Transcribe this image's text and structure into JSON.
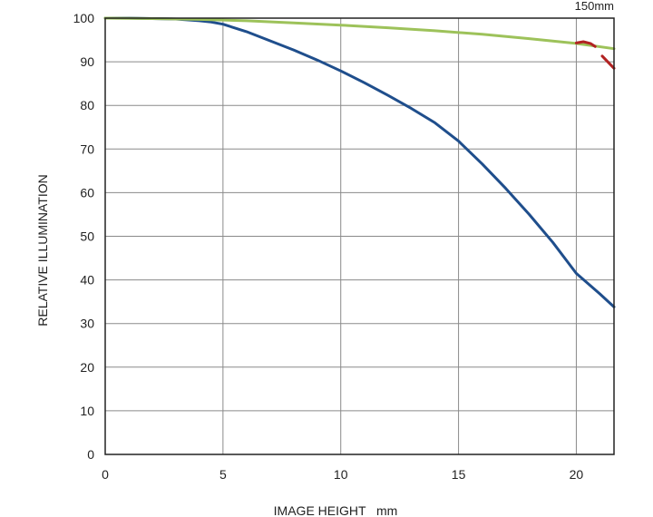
{
  "chart_data": {
    "type": "line",
    "title": "",
    "annotation": "150mm",
    "xlabel": "IMAGE HEIGHT   mm",
    "ylabel": "RELATIVE ILLUMINATION",
    "xlim": [
      0,
      21.6
    ],
    "ylim": [
      0,
      100
    ],
    "xticks": [
      0,
      5,
      10,
      15,
      20
    ],
    "yticks": [
      0,
      10,
      20,
      30,
      40,
      50,
      60,
      70,
      80,
      90,
      100
    ],
    "grid": true,
    "series": [
      {
        "color": "#1f4e8c",
        "x": [
          0,
          1,
          2,
          3,
          4,
          4.5,
          5,
          6,
          7,
          8,
          9,
          10,
          11,
          12,
          13,
          14,
          15,
          16,
          17,
          18,
          19,
          20,
          21,
          21.6
        ],
        "y": [
          100,
          100,
          99.9,
          99.8,
          99.4,
          99.1,
          98.6,
          96.9,
          94.8,
          92.7,
          90.4,
          87.9,
          85.2,
          82.3,
          79.3,
          76.0,
          71.8,
          66.6,
          61.0,
          55.0,
          48.6,
          41.5,
          36.8,
          33.8
        ]
      },
      {
        "color": "#9dc25a",
        "x": [
          0,
          2,
          4,
          6,
          8,
          10,
          12,
          14,
          16,
          18,
          20,
          21.6
        ],
        "y": [
          100,
          99.9,
          99.7,
          99.4,
          98.9,
          98.4,
          97.8,
          97.1,
          96.3,
          95.3,
          94.2,
          93.0
        ]
      },
      {
        "color": "#b22222",
        "segments": [
          {
            "x": [
              20.0,
              20.3,
              20.6,
              20.8
            ],
            "y": [
              94.3,
              94.6,
              94.2,
              93.5
            ]
          },
          {
            "x": [
              21.1,
              21.6
            ],
            "y": [
              91.3,
              88.5
            ]
          }
        ]
      }
    ]
  }
}
